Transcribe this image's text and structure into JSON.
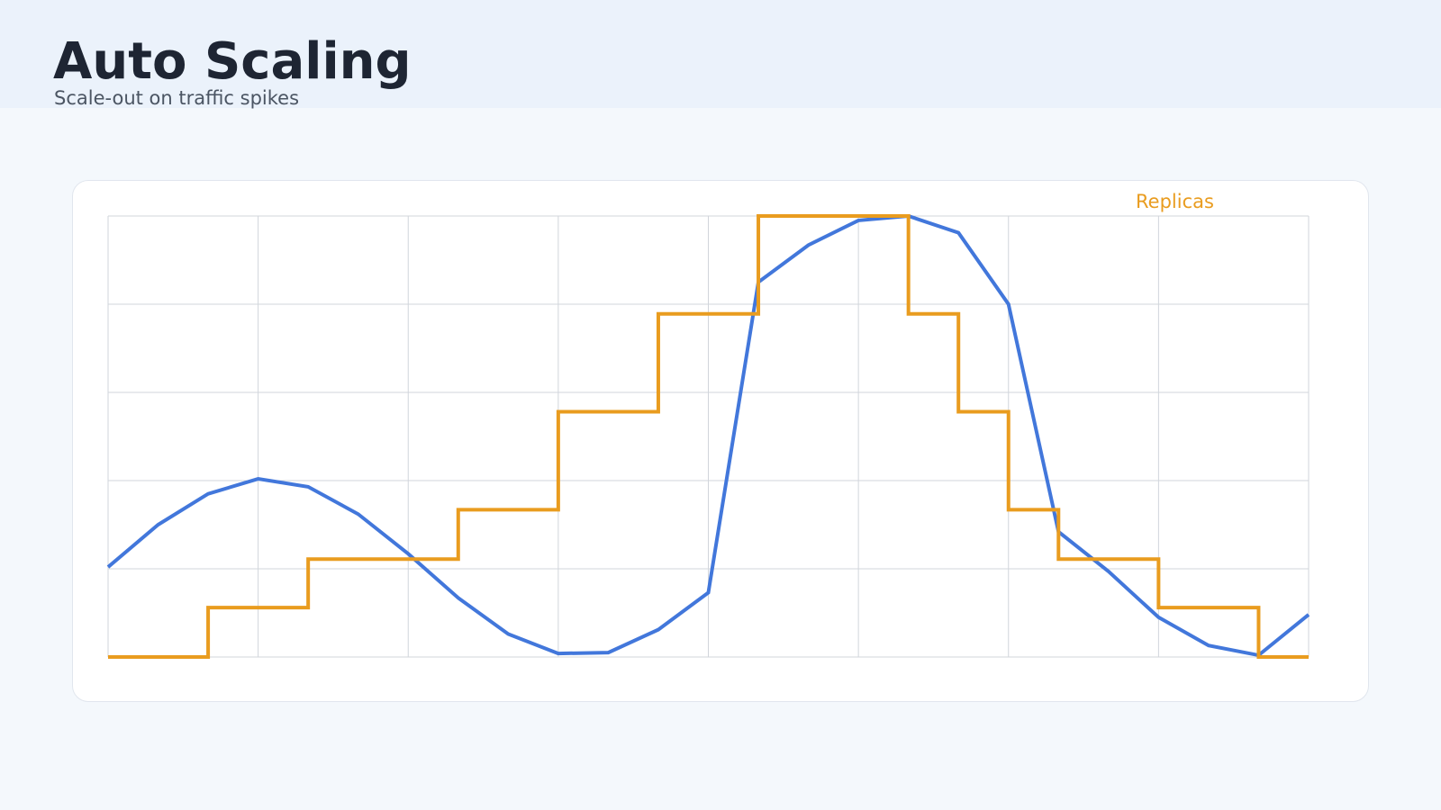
{
  "header": {
    "title": "Auto Scaling",
    "subtitle": "Scale-out on traffic spikes"
  },
  "colors": {
    "background": "#f4f8fc",
    "header_band": "#ebf2fb",
    "traffic": "#4277db",
    "replicas": "#e99c1f",
    "grid": "#d1d5db"
  },
  "chart_data": {
    "type": "line",
    "x": [
      0,
      0.5,
      1,
      1.5,
      2,
      2.5,
      3,
      3.5,
      4,
      4.5,
      5,
      5.5,
      6,
      6.5,
      7,
      7.5,
      8,
      8.5,
      9,
      9.5,
      10,
      10.5,
      11,
      11.5,
      12
    ],
    "xlim": [
      0,
      12
    ],
    "ylim": [
      0,
      5
    ],
    "grid": true,
    "legend_position": "top-right",
    "series": [
      {
        "key": "traffic",
        "color": "#4277db",
        "style": "line",
        "values": [
          1.02,
          1.5,
          1.85,
          2.02,
          1.93,
          1.62,
          1.17,
          0.67,
          0.26,
          0.04,
          0.05,
          0.31,
          0.73,
          4.25,
          4.67,
          4.95,
          5.0,
          4.81,
          4.0,
          1.42,
          0.97,
          0.45,
          0.13,
          0.02,
          0.48
        ]
      },
      {
        "key": "replicas",
        "name": "Replicas",
        "color": "#e99c1f",
        "style": "step",
        "values": [
          0,
          0,
          0.56,
          0.56,
          1.11,
          1.11,
          1.11,
          1.67,
          1.67,
          2.78,
          2.78,
          3.89,
          3.89,
          5.0,
          5.0,
          5.0,
          3.89,
          2.78,
          1.67,
          1.11,
          1.11,
          0.56,
          0.56,
          0,
          0
        ]
      }
    ]
  }
}
